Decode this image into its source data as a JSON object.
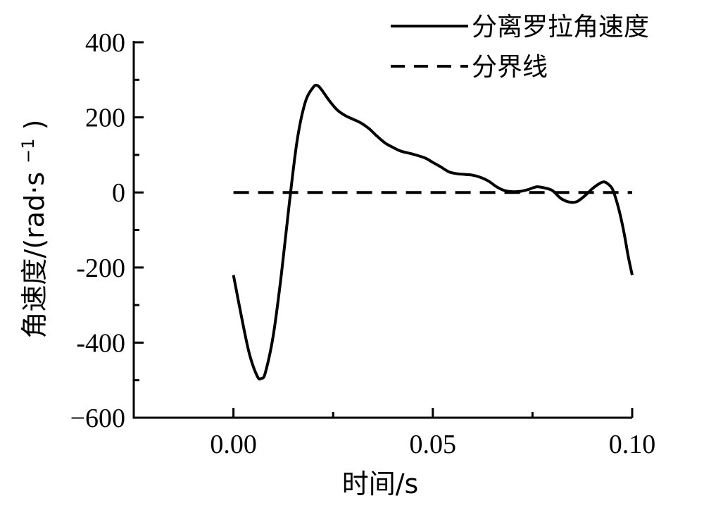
{
  "chart_data": {
    "type": "line",
    "title": "",
    "xlabel": "时间/s",
    "ylabel_main": "角速度/(rad·s",
    "ylabel_sup": "−1",
    "ylabel_close": ")",
    "xlim": [
      -0.025,
      0.1
    ],
    "ylim": [
      -600,
      400
    ],
    "x_ticks": [
      0.0,
      0.05,
      0.1
    ],
    "x_tick_labels": [
      "0.00",
      "0.05",
      "0.10"
    ],
    "x_minor_ticks": [
      0.025,
      0.075
    ],
    "y_ticks": [
      -600,
      -400,
      -200,
      0,
      200,
      400
    ],
    "y_tick_labels": [
      "−600",
      "-400",
      "-200",
      "0",
      "200",
      "400"
    ],
    "y_minor_ticks": [
      -500,
      -300,
      -100,
      100,
      300
    ],
    "legend_placement": "top-right",
    "grid": false,
    "colors": {
      "line": "#000000",
      "axis": "#000000",
      "background": "#ffffff"
    },
    "series": [
      {
        "name": "分离罗拉角速度",
        "style": "solid",
        "x": [
          0.0,
          0.002,
          0.004,
          0.006,
          0.007,
          0.008,
          0.01,
          0.012,
          0.014,
          0.016,
          0.018,
          0.02,
          0.021,
          0.022,
          0.024,
          0.026,
          0.028,
          0.03,
          0.032,
          0.034,
          0.036,
          0.038,
          0.04,
          0.042,
          0.045,
          0.048,
          0.05,
          0.052,
          0.054,
          0.056,
          0.058,
          0.06,
          0.062,
          0.064,
          0.066,
          0.068,
          0.07,
          0.072,
          0.074,
          0.076,
          0.078,
          0.08,
          0.082,
          0.084,
          0.086,
          0.088,
          0.09,
          0.092,
          0.093,
          0.094,
          0.095,
          0.096,
          0.097,
          0.098,
          0.099,
          0.1
        ],
        "values": [
          -220,
          -330,
          -430,
          -490,
          -495,
          -480,
          -380,
          -220,
          -30,
          140,
          240,
          280,
          285,
          275,
          245,
          220,
          205,
          195,
          185,
          170,
          150,
          132,
          120,
          110,
          102,
          92,
          80,
          68,
          55,
          50,
          48,
          46,
          40,
          30,
          15,
          5,
          2,
          3,
          8,
          15,
          12,
          5,
          -15,
          -25,
          -25,
          -10,
          10,
          25,
          28,
          22,
          10,
          -20,
          -60,
          -110,
          -170,
          -220
        ]
      },
      {
        "name": "分界线",
        "style": "dashed",
        "x": [
          0.0,
          0.1
        ],
        "values": [
          0,
          0
        ]
      }
    ]
  }
}
